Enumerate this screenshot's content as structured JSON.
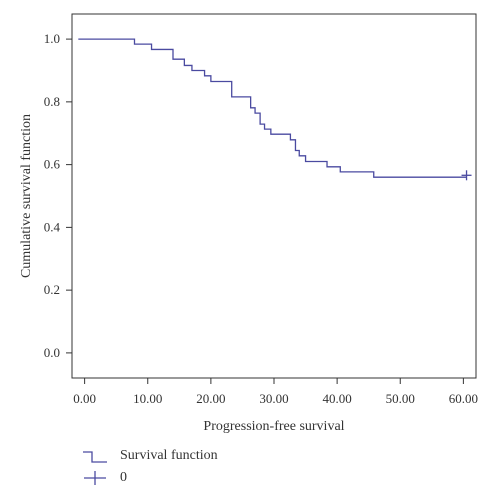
{
  "chart_data": {
    "type": "line",
    "title": "",
    "xlabel": "Progression-free survival",
    "ylabel": "Cumulative survival function",
    "xlim": [
      -2,
      62
    ],
    "ylim": [
      -0.08,
      1.08
    ],
    "x_ticks": [
      0,
      10,
      20,
      30,
      40,
      50,
      60
    ],
    "x_tick_labels": [
      "0.00",
      "10.00",
      "20.00",
      "30.00",
      "40.00",
      "50.00",
      "60.00"
    ],
    "y_ticks": [
      0.0,
      0.2,
      0.4,
      0.6,
      0.8,
      1.0
    ],
    "y_tick_labels": [
      "0.0",
      "0.2",
      "0.4",
      "0.6",
      "0.8",
      "1.0"
    ],
    "grid": false,
    "legend_placement": "bottom-left",
    "series": [
      {
        "name": "Survival function",
        "style": "step",
        "color": "#4a4aa0",
        "x": [
          -1,
          7.9,
          10.6,
          14,
          15.8,
          17,
          19,
          20,
          23.3,
          26.3,
          27,
          27.8,
          28.5,
          29.5,
          30.5,
          32.6,
          33.4,
          34,
          35,
          38.4,
          40.5,
          45.8,
          60.5
        ],
        "y": [
          1.0,
          0.984,
          0.967,
          0.936,
          0.916,
          0.9,
          0.883,
          0.865,
          0.816,
          0.781,
          0.764,
          0.729,
          0.713,
          0.697,
          0.697,
          0.679,
          0.645,
          0.628,
          0.61,
          0.593,
          0.577,
          0.56,
          0.56
        ]
      }
    ],
    "censored": {
      "name": "0",
      "marker": "plus",
      "color": "#4a4aa0",
      "x": [
        60.5
      ],
      "y": [
        0.566
      ]
    }
  },
  "legend": {
    "items": [
      {
        "label": "Survival function",
        "symbol": "step",
        "color": "#4a4aa0"
      },
      {
        "label": "0",
        "symbol": "plus",
        "color": "#4a4aa0"
      }
    ]
  }
}
